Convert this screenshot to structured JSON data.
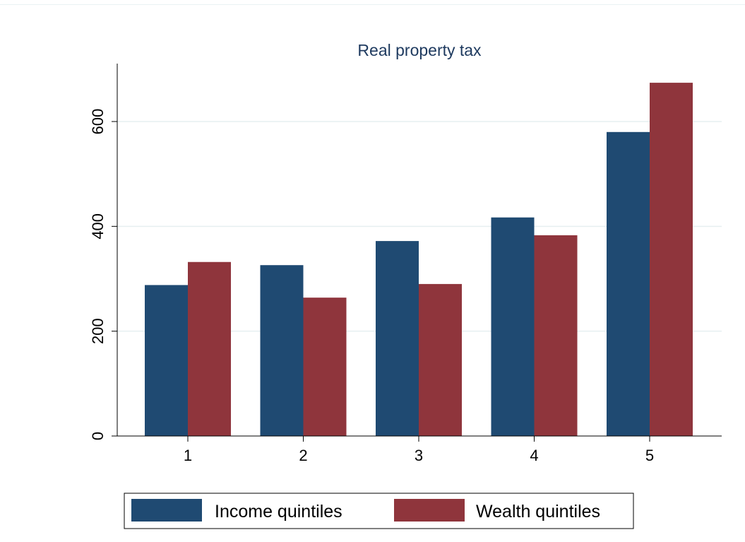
{
  "chart_data": {
    "type": "bar",
    "title": "Real property tax",
    "xlabel": "",
    "ylabel": "",
    "categories": [
      "1",
      "2",
      "3",
      "4",
      "5"
    ],
    "series": [
      {
        "name": "Income quintiles",
        "color": "#1f4a72",
        "values": [
          288,
          326,
          372,
          417,
          580
        ]
      },
      {
        "name": "Wealth quintiles",
        "color": "#8f353c",
        "values": [
          332,
          264,
          290,
          383,
          674
        ]
      }
    ],
    "ylim": [
      0,
      712
    ],
    "yticks": [
      0,
      200,
      400,
      600
    ],
    "grid": true,
    "legend_position": "bottom"
  }
}
